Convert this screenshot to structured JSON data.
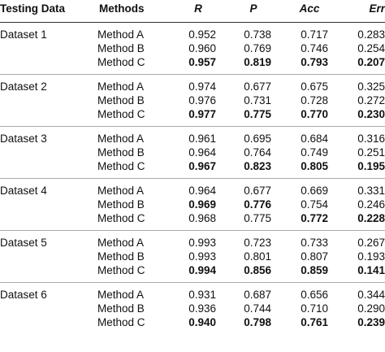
{
  "headers": [
    "Testing Data",
    "Methods",
    "R",
    "P",
    "Acc",
    "Err"
  ],
  "groups": [
    {
      "dataset": "Dataset 1",
      "rows": [
        {
          "method": "Method A",
          "values": [
            "0.952",
            "0.738",
            "0.717",
            "0.283"
          ],
          "bold": [
            false,
            false,
            false,
            false
          ]
        },
        {
          "method": "Method B",
          "values": [
            "0.960",
            "0.769",
            "0.746",
            "0.254"
          ],
          "bold": [
            false,
            false,
            false,
            false
          ]
        },
        {
          "method": "Method C",
          "values": [
            "0.957",
            "0.819",
            "0.793",
            "0.207"
          ],
          "bold": [
            true,
            true,
            true,
            true
          ]
        }
      ]
    },
    {
      "dataset": "Dataset 2",
      "rows": [
        {
          "method": "Method A",
          "values": [
            "0.974",
            "0.677",
            "0.675",
            "0.325"
          ],
          "bold": [
            false,
            false,
            false,
            false
          ]
        },
        {
          "method": "Method B",
          "values": [
            "0.976",
            "0.731",
            "0.728",
            "0.272"
          ],
          "bold": [
            false,
            false,
            false,
            false
          ]
        },
        {
          "method": "Method C",
          "values": [
            "0.977",
            "0.775",
            "0.770",
            "0.230"
          ],
          "bold": [
            true,
            true,
            true,
            true
          ]
        }
      ]
    },
    {
      "dataset": "Dataset 3",
      "rows": [
        {
          "method": "Method A",
          "values": [
            "0.961",
            "0.695",
            "0.684",
            "0.316"
          ],
          "bold": [
            false,
            false,
            false,
            false
          ]
        },
        {
          "method": "Method B",
          "values": [
            "0.964",
            "0.764",
            "0.749",
            "0.251"
          ],
          "bold": [
            false,
            false,
            false,
            false
          ]
        },
        {
          "method": "Method C",
          "values": [
            "0.967",
            "0.823",
            "0.805",
            "0.195"
          ],
          "bold": [
            true,
            true,
            true,
            true
          ]
        }
      ]
    },
    {
      "dataset": "Dataset 4",
      "rows": [
        {
          "method": "Method A",
          "values": [
            "0.964",
            "0.677",
            "0.669",
            "0.331"
          ],
          "bold": [
            false,
            false,
            false,
            false
          ]
        },
        {
          "method": "Method B",
          "values": [
            "0.969",
            "0.776",
            "0.754",
            "0.246"
          ],
          "bold": [
            true,
            true,
            false,
            false
          ]
        },
        {
          "method": "Method C",
          "values": [
            "0.968",
            "0.775",
            "0.772",
            "0.228"
          ],
          "bold": [
            false,
            false,
            true,
            true
          ]
        }
      ]
    },
    {
      "dataset": "Dataset 5",
      "rows": [
        {
          "method": "Method A",
          "values": [
            "0.993",
            "0.723",
            "0.733",
            "0.267"
          ],
          "bold": [
            false,
            false,
            false,
            false
          ]
        },
        {
          "method": "Method B",
          "values": [
            "0.993",
            "0.801",
            "0.807",
            "0.193"
          ],
          "bold": [
            false,
            false,
            false,
            false
          ]
        },
        {
          "method": "Method C",
          "values": [
            "0.994",
            "0.856",
            "0.859",
            "0.141"
          ],
          "bold": [
            true,
            true,
            true,
            true
          ]
        }
      ]
    },
    {
      "dataset": "Dataset 6",
      "rows": [
        {
          "method": "Method A",
          "values": [
            "0.931",
            "0.687",
            "0.656",
            "0.344"
          ],
          "bold": [
            false,
            false,
            false,
            false
          ]
        },
        {
          "method": "Method B",
          "values": [
            "0.936",
            "0.744",
            "0.710",
            "0.290"
          ],
          "bold": [
            false,
            false,
            false,
            false
          ]
        },
        {
          "method": "Method C",
          "values": [
            "0.940",
            "0.798",
            "0.761",
            "0.239"
          ],
          "bold": [
            true,
            true,
            true,
            true
          ]
        }
      ]
    }
  ]
}
